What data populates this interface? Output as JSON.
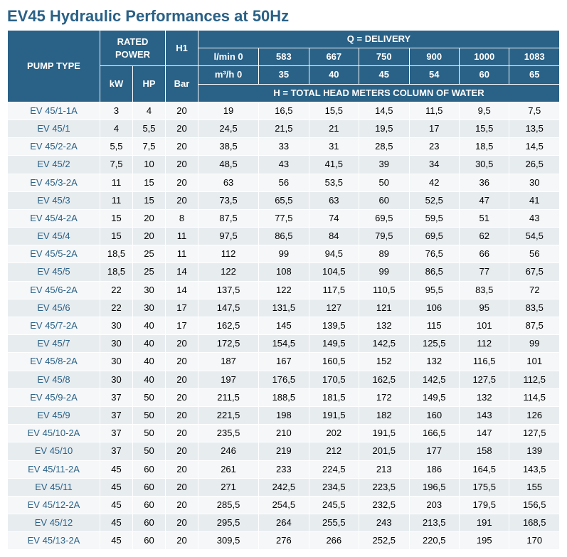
{
  "title": "EV45 Hydraulic Performances at 50Hz",
  "title_color": "#2a6186",
  "header": {
    "pump_type": "PUMP TYPE",
    "rated_power": "RATED POWER",
    "h1": "H1",
    "q_delivery": "Q = DELIVERY",
    "lmin": "l/min 0",
    "m3h": "m³/h 0",
    "kw": "kW",
    "hp": "HP",
    "bar": "Bar",
    "h_total": "H = TOTAL HEAD METERS COLUMN OF WATER",
    "lmin_cols": [
      "583",
      "667",
      "750",
      "900",
      "1000",
      "1083"
    ],
    "m3h_cols": [
      "35",
      "40",
      "45",
      "54",
      "60",
      "65"
    ]
  },
  "rows": [
    {
      "pump": "EV 45/1-1A",
      "kw": "3",
      "hp": "4",
      "bar": "20",
      "v": [
        "19",
        "16,5",
        "15,5",
        "14,5",
        "11,5",
        "9,5",
        "7,5"
      ]
    },
    {
      "pump": "EV 45/1",
      "kw": "4",
      "hp": "5,5",
      "bar": "20",
      "v": [
        "24,5",
        "21,5",
        "21",
        "19,5",
        "17",
        "15,5",
        "13,5"
      ]
    },
    {
      "pump": "EV 45/2-2A",
      "kw": "5,5",
      "hp": "7,5",
      "bar": "20",
      "v": [
        "38,5",
        "33",
        "31",
        "28,5",
        "23",
        "18,5",
        "14,5"
      ]
    },
    {
      "pump": "EV 45/2",
      "kw": "7,5",
      "hp": "10",
      "bar": "20",
      "v": [
        "48,5",
        "43",
        "41,5",
        "39",
        "34",
        "30,5",
        "26,5"
      ]
    },
    {
      "pump": "EV 45/3-2A",
      "kw": "11",
      "hp": "15",
      "bar": "20",
      "v": [
        "63",
        "56",
        "53,5",
        "50",
        "42",
        "36",
        "30"
      ]
    },
    {
      "pump": "EV 45/3",
      "kw": "11",
      "hp": "15",
      "bar": "20",
      "v": [
        "73,5",
        "65,5",
        "63",
        "60",
        "52,5",
        "47",
        "41"
      ]
    },
    {
      "pump": "EV 45/4-2A",
      "kw": "15",
      "hp": "20",
      "bar": "8",
      "v": [
        "87,5",
        "77,5",
        "74",
        "69,5",
        "59,5",
        "51",
        "43"
      ]
    },
    {
      "pump": "EV 45/4",
      "kw": "15",
      "hp": "20",
      "bar": "11",
      "v": [
        "97,5",
        "86,5",
        "84",
        "79,5",
        "69,5",
        "62",
        "54,5"
      ]
    },
    {
      "pump": "EV 45/5-2A",
      "kw": "18,5",
      "hp": "25",
      "bar": "11",
      "v": [
        "112",
        "99",
        "94,5",
        "89",
        "76,5",
        "66",
        "56"
      ]
    },
    {
      "pump": "EV 45/5",
      "kw": "18,5",
      "hp": "25",
      "bar": "14",
      "v": [
        "122",
        "108",
        "104,5",
        "99",
        "86,5",
        "77",
        "67,5"
      ]
    },
    {
      "pump": "EV 45/6-2A",
      "kw": "22",
      "hp": "30",
      "bar": "14",
      "v": [
        "137,5",
        "122",
        "117,5",
        "110,5",
        "95,5",
        "83,5",
        "72"
      ]
    },
    {
      "pump": "EV 45/6",
      "kw": "22",
      "hp": "30",
      "bar": "17",
      "v": [
        "147,5",
        "131,5",
        "127",
        "121",
        "106",
        "95",
        "83,5"
      ]
    },
    {
      "pump": "EV 45/7-2A",
      "kw": "30",
      "hp": "40",
      "bar": "17",
      "v": [
        "162,5",
        "145",
        "139,5",
        "132",
        "115",
        "101",
        "87,5"
      ]
    },
    {
      "pump": "EV 45/7",
      "kw": "30",
      "hp": "40",
      "bar": "20",
      "v": [
        "172,5",
        "154,5",
        "149,5",
        "142,5",
        "125,5",
        "112",
        "99"
      ]
    },
    {
      "pump": "EV 45/8-2A",
      "kw": "30",
      "hp": "40",
      "bar": "20",
      "v": [
        "187",
        "167",
        "160,5",
        "152",
        "132",
        "116,5",
        "101"
      ]
    },
    {
      "pump": "EV 45/8",
      "kw": "30",
      "hp": "40",
      "bar": "20",
      "v": [
        "197",
        "176,5",
        "170,5",
        "162,5",
        "142,5",
        "127,5",
        "112,5"
      ]
    },
    {
      "pump": "EV 45/9-2A",
      "kw": "37",
      "hp": "50",
      "bar": "20",
      "v": [
        "211,5",
        "188,5",
        "181,5",
        "172",
        "149,5",
        "132",
        "114,5"
      ]
    },
    {
      "pump": "EV 45/9",
      "kw": "37",
      "hp": "50",
      "bar": "20",
      "v": [
        "221,5",
        "198",
        "191,5",
        "182",
        "160",
        "143",
        "126"
      ]
    },
    {
      "pump": "EV 45/10-2A",
      "kw": "37",
      "hp": "50",
      "bar": "20",
      "v": [
        "235,5",
        "210",
        "202",
        "191,5",
        "166,5",
        "147",
        "127,5"
      ]
    },
    {
      "pump": "EV 45/10",
      "kw": "37",
      "hp": "50",
      "bar": "20",
      "v": [
        "246",
        "219",
        "212",
        "201,5",
        "177",
        "158",
        "139"
      ]
    },
    {
      "pump": "EV 45/11-2A",
      "kw": "45",
      "hp": "60",
      "bar": "20",
      "v": [
        "261",
        "233",
        "224,5",
        "213",
        "186",
        "164,5",
        "143,5"
      ]
    },
    {
      "pump": "EV 45/11",
      "kw": "45",
      "hp": "60",
      "bar": "20",
      "v": [
        "271",
        "242,5",
        "234,5",
        "223,5",
        "196,5",
        "175,5",
        "155"
      ]
    },
    {
      "pump": "EV 45/12-2A",
      "kw": "45",
      "hp": "60",
      "bar": "20",
      "v": [
        "285,5",
        "254,5",
        "245,5",
        "232,5",
        "203",
        "179,5",
        "156,5"
      ]
    },
    {
      "pump": "EV 45/12",
      "kw": "45",
      "hp": "60",
      "bar": "20",
      "v": [
        "295,5",
        "264",
        "255,5",
        "243",
        "213,5",
        "191",
        "168,5"
      ]
    },
    {
      "pump": "EV 45/13-2A",
      "kw": "45",
      "hp": "60",
      "bar": "20",
      "v": [
        "309,5",
        "276",
        "266",
        "252,5",
        "220,5",
        "195",
        "170"
      ]
    }
  ]
}
